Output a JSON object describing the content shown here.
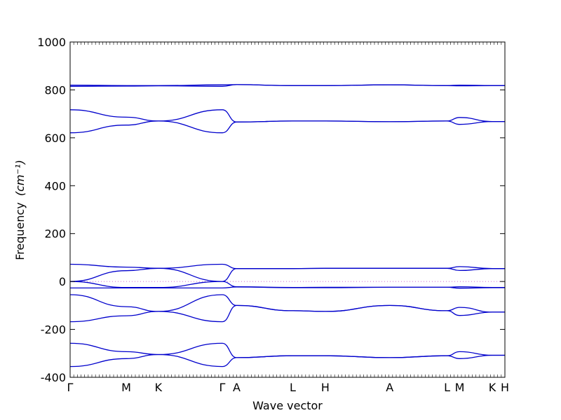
{
  "chart_data": {
    "type": "line",
    "title": "",
    "xlabel": "Wave vector",
    "ylabel": "Frequency",
    "ylabel_unit": "(cm⁻¹)",
    "ylim": [
      -400,
      1000
    ],
    "yticks": [
      -400,
      -200,
      0,
      200,
      400,
      600,
      800,
      1000
    ],
    "xlim": [
      0,
      1
    ],
    "high_symmetry_points": [
      {
        "label": "Γ",
        "x": 0.0
      },
      {
        "label": "M",
        "x": 0.129
      },
      {
        "label": "K",
        "x": 0.203
      },
      {
        "label": "Γ",
        "x": 0.35
      },
      {
        "label": "A",
        "x": 0.383
      },
      {
        "label": "L",
        "x": 0.512
      },
      {
        "label": "H",
        "x": 0.587
      },
      {
        "label": "A",
        "x": 0.735
      },
      {
        "label": "L",
        "x": 0.867
      },
      {
        "label": "M",
        "x": 0.896
      },
      {
        "label": "K",
        "x": 0.971
      },
      {
        "label": "H",
        "x": 1.0
      }
    ],
    "line_color": "#0000cc",
    "zero_line_color": "#cc66cc",
    "series": [
      {
        "x": [
          0,
          0.129,
          0.203,
          0.35,
          0.383,
          0.512,
          0.587,
          0.735,
          0.867,
          0.896,
          0.971,
          1.0
        ],
        "values": [
          820,
          818,
          818,
          821,
          822,
          818,
          818,
          821,
          818,
          820,
          818,
          818
        ]
      },
      {
        "x": [
          0,
          0.129,
          0.203,
          0.35,
          0.383,
          0.512,
          0.587,
          0.735,
          0.867,
          0.896,
          0.971,
          1.0
        ],
        "values": [
          815,
          816,
          817,
          815,
          822,
          818,
          818,
          821,
          818,
          817,
          818,
          818
        ]
      },
      {
        "x": [
          0,
          0.129,
          0.203,
          0.35,
          0.383,
          0.512,
          0.587,
          0.735,
          0.867,
          0.896,
          0.971,
          1.0
        ],
        "values": [
          717,
          686,
          670,
          717,
          666,
          670,
          670,
          667,
          670,
          685,
          668,
          668
        ]
      },
      {
        "x": [
          0,
          0.129,
          0.203,
          0.35,
          0.383,
          0.512,
          0.587,
          0.735,
          0.867,
          0.896,
          0.971,
          1.0
        ],
        "values": [
          621,
          653,
          670,
          621,
          666,
          670,
          670,
          667,
          670,
          656,
          668,
          668
        ]
      },
      {
        "x": [
          0,
          0.129,
          0.203,
          0.35,
          0.383,
          0.512,
          0.587,
          0.735,
          0.867,
          0.896,
          0.971,
          1.0
        ],
        "values": [
          72,
          60,
          55,
          72,
          54,
          54,
          55,
          55,
          55,
          62,
          54,
          54
        ]
      },
      {
        "x": [
          0,
          0.129,
          0.203,
          0.35,
          0.383,
          0.512,
          0.587,
          0.735,
          0.867,
          0.896,
          0.971,
          1.0
        ],
        "values": [
          0,
          45,
          55,
          0,
          54,
          54,
          55,
          55,
          55,
          46,
          54,
          54
        ]
      },
      {
        "x": [
          0,
          0.129,
          0.203,
          0.35,
          0.383,
          0.512,
          0.587,
          0.735,
          0.867,
          0.896,
          0.971,
          1.0
        ],
        "values": [
          0,
          -25,
          -25,
          0,
          -22,
          -25,
          -24,
          -24,
          -24,
          -22,
          -25,
          -25
        ]
      },
      {
        "x": [
          0,
          0.129,
          0.203,
          0.35,
          0.383,
          0.512,
          0.587,
          0.735,
          0.867,
          0.896,
          0.971,
          1.0
        ],
        "values": [
          -27,
          -27,
          -27,
          -27,
          -23,
          -26,
          -26,
          -24,
          -24,
          -28,
          -26,
          -26
        ]
      },
      {
        "x": [
          0,
          0.129,
          0.203,
          0.35,
          0.383,
          0.512,
          0.587,
          0.735,
          0.867,
          0.896,
          0.971,
          1.0
        ],
        "values": [
          -55,
          -105,
          -125,
          -55,
          -100,
          -122,
          -125,
          -100,
          -122,
          -108,
          -128,
          -128
        ]
      },
      {
        "x": [
          0,
          0.129,
          0.203,
          0.35,
          0.383,
          0.512,
          0.587,
          0.735,
          0.867,
          0.896,
          0.971,
          1.0
        ],
        "values": [
          -168,
          -143,
          -125,
          -168,
          -100,
          -122,
          -125,
          -100,
          -122,
          -142,
          -128,
          -128
        ]
      },
      {
        "x": [
          0,
          0.129,
          0.203,
          0.35,
          0.383,
          0.512,
          0.587,
          0.735,
          0.867,
          0.896,
          0.971,
          1.0
        ],
        "values": [
          -258,
          -293,
          -305,
          -258,
          -318,
          -310,
          -310,
          -318,
          -310,
          -293,
          -308,
          -308
        ]
      },
      {
        "x": [
          0,
          0.129,
          0.203,
          0.35,
          0.383,
          0.512,
          0.587,
          0.735,
          0.867,
          0.896,
          0.971,
          1.0
        ],
        "values": [
          -355,
          -322,
          -305,
          -355,
          -318,
          -310,
          -310,
          -318,
          -310,
          -322,
          -308,
          -308
        ]
      }
    ]
  }
}
